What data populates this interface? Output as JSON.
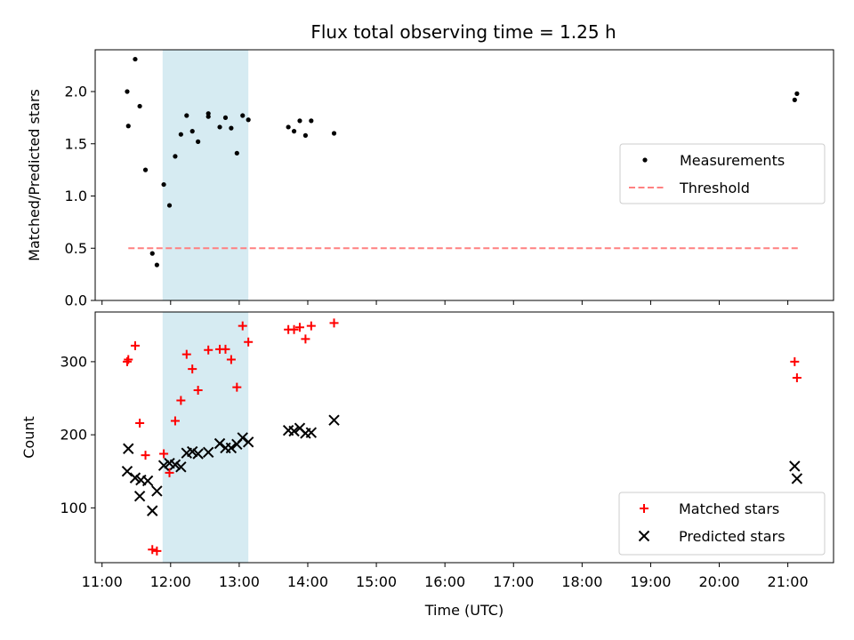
{
  "title": "Flux total observing time = 1.25 h",
  "chart_data": [
    {
      "type": "scatter",
      "panel": "top",
      "title": "Flux total observing time = 1.25 h",
      "xlabel": "",
      "ylabel": "Matched/Predicted stars",
      "xlim": [
        "10:54",
        "21:40"
      ],
      "ylim": [
        0,
        2.4
      ],
      "y_ticks": [
        0.0,
        0.5,
        1.0,
        1.5,
        2.0
      ],
      "y_tick_labels": [
        "0.0",
        "0.5",
        "1.0",
        "1.5",
        "2.0"
      ],
      "shaded_interval": {
        "start": "11:53",
        "end": "13:08",
        "color": "#add8e6"
      },
      "legend_position": "center-right",
      "series": [
        {
          "name": "Measurements",
          "style": "dot",
          "color": "#000000",
          "points": [
            {
              "x": "11:22",
              "y": 2.0
            },
            {
              "x": "11:23",
              "y": 1.67
            },
            {
              "x": "11:29",
              "y": 2.31
            },
            {
              "x": "11:33",
              "y": 1.86
            },
            {
              "x": "11:38",
              "y": 1.25
            },
            {
              "x": "11:44",
              "y": 0.45
            },
            {
              "x": "11:48",
              "y": 0.34
            },
            {
              "x": "11:54",
              "y": 1.11
            },
            {
              "x": "11:59",
              "y": 0.91
            },
            {
              "x": "12:04",
              "y": 1.38
            },
            {
              "x": "12:09",
              "y": 1.59
            },
            {
              "x": "12:14",
              "y": 1.77
            },
            {
              "x": "12:19",
              "y": 1.62
            },
            {
              "x": "12:24",
              "y": 1.52
            },
            {
              "x": "12:33",
              "y": 1.79
            },
            {
              "x": "12:33",
              "y": 1.76
            },
            {
              "x": "12:43",
              "y": 1.66
            },
            {
              "x": "12:48",
              "y": 1.75
            },
            {
              "x": "12:53",
              "y": 1.65
            },
            {
              "x": "12:58",
              "y": 1.41
            },
            {
              "x": "13:03",
              "y": 1.77
            },
            {
              "x": "13:08",
              "y": 1.73
            },
            {
              "x": "13:43",
              "y": 1.66
            },
            {
              "x": "13:48",
              "y": 1.62
            },
            {
              "x": "13:53",
              "y": 1.72
            },
            {
              "x": "13:58",
              "y": 1.58
            },
            {
              "x": "14:03",
              "y": 1.72
            },
            {
              "x": "14:23",
              "y": 1.6
            },
            {
              "x": "21:06",
              "y": 1.92
            },
            {
              "x": "21:08",
              "y": 1.98
            }
          ]
        },
        {
          "name": "Threshold",
          "style": "dashed-line",
          "color": "#ff8080",
          "points": [
            {
              "x": "11:23",
              "y": 0.5
            },
            {
              "x": "21:10",
              "y": 0.5
            }
          ]
        }
      ]
    },
    {
      "type": "scatter",
      "panel": "bottom",
      "xlabel": "Time (UTC)",
      "ylabel": "Count",
      "xlim": [
        "10:54",
        "21:40"
      ],
      "ylim": [
        25,
        368
      ],
      "x_ticks": [
        "11:00",
        "12:00",
        "13:00",
        "14:00",
        "15:00",
        "16:00",
        "17:00",
        "18:00",
        "19:00",
        "20:00",
        "21:00"
      ],
      "y_ticks": [
        100,
        200,
        300
      ],
      "y_tick_labels": [
        "100",
        "200",
        "300"
      ],
      "shaded_interval": {
        "start": "11:53",
        "end": "13:08",
        "color": "#add8e6"
      },
      "legend_position": "lower-right",
      "series": [
        {
          "name": "Matched stars",
          "style": "plus",
          "color": "#ff0000",
          "points": [
            {
              "x": "11:22",
              "y": 300
            },
            {
              "x": "11:23",
              "y": 303
            },
            {
              "x": "11:29",
              "y": 322
            },
            {
              "x": "11:33",
              "y": 216
            },
            {
              "x": "11:38",
              "y": 172
            },
            {
              "x": "11:44",
              "y": 43
            },
            {
              "x": "11:48",
              "y": 41
            },
            {
              "x": "11:54",
              "y": 174
            },
            {
              "x": "11:59",
              "y": 148
            },
            {
              "x": "12:04",
              "y": 219
            },
            {
              "x": "12:09",
              "y": 247
            },
            {
              "x": "12:14",
              "y": 310
            },
            {
              "x": "12:19",
              "y": 290
            },
            {
              "x": "12:24",
              "y": 261
            },
            {
              "x": "12:33",
              "y": 316
            },
            {
              "x": "12:43",
              "y": 317
            },
            {
              "x": "12:48",
              "y": 317
            },
            {
              "x": "12:53",
              "y": 303
            },
            {
              "x": "12:58",
              "y": 265
            },
            {
              "x": "13:03",
              "y": 349
            },
            {
              "x": "13:08",
              "y": 327
            },
            {
              "x": "13:43",
              "y": 344
            },
            {
              "x": "13:48",
              "y": 344
            },
            {
              "x": "13:53",
              "y": 347
            },
            {
              "x": "13:58",
              "y": 331
            },
            {
              "x": "14:03",
              "y": 349
            },
            {
              "x": "14:23",
              "y": 353
            },
            {
              "x": "21:06",
              "y": 300
            },
            {
              "x": "21:08",
              "y": 278
            }
          ]
        },
        {
          "name": "Predicted stars",
          "style": "cross",
          "color": "#000000",
          "points": [
            {
              "x": "11:22",
              "y": 150
            },
            {
              "x": "11:23",
              "y": 181
            },
            {
              "x": "11:29",
              "y": 141
            },
            {
              "x": "11:33",
              "y": 116
            },
            {
              "x": "11:34",
              "y": 138
            },
            {
              "x": "11:40",
              "y": 137
            },
            {
              "x": "11:44",
              "y": 96
            },
            {
              "x": "11:48",
              "y": 123
            },
            {
              "x": "11:54",
              "y": 158
            },
            {
              "x": "11:59",
              "y": 161
            },
            {
              "x": "12:04",
              "y": 159
            },
            {
              "x": "12:09",
              "y": 156
            },
            {
              "x": "12:14",
              "y": 175
            },
            {
              "x": "12:19",
              "y": 177
            },
            {
              "x": "12:24",
              "y": 174
            },
            {
              "x": "12:33",
              "y": 176
            },
            {
              "x": "12:43",
              "y": 188
            },
            {
              "x": "12:48",
              "y": 182
            },
            {
              "x": "12:53",
              "y": 182
            },
            {
              "x": "12:58",
              "y": 187
            },
            {
              "x": "13:03",
              "y": 196
            },
            {
              "x": "13:08",
              "y": 190
            },
            {
              "x": "13:43",
              "y": 206
            },
            {
              "x": "13:48",
              "y": 205
            },
            {
              "x": "13:53",
              "y": 209
            },
            {
              "x": "13:58",
              "y": 202
            },
            {
              "x": "14:03",
              "y": 203
            },
            {
              "x": "14:23",
              "y": 220
            },
            {
              "x": "21:06",
              "y": 157
            },
            {
              "x": "21:08",
              "y": 140
            }
          ]
        }
      ]
    }
  ]
}
